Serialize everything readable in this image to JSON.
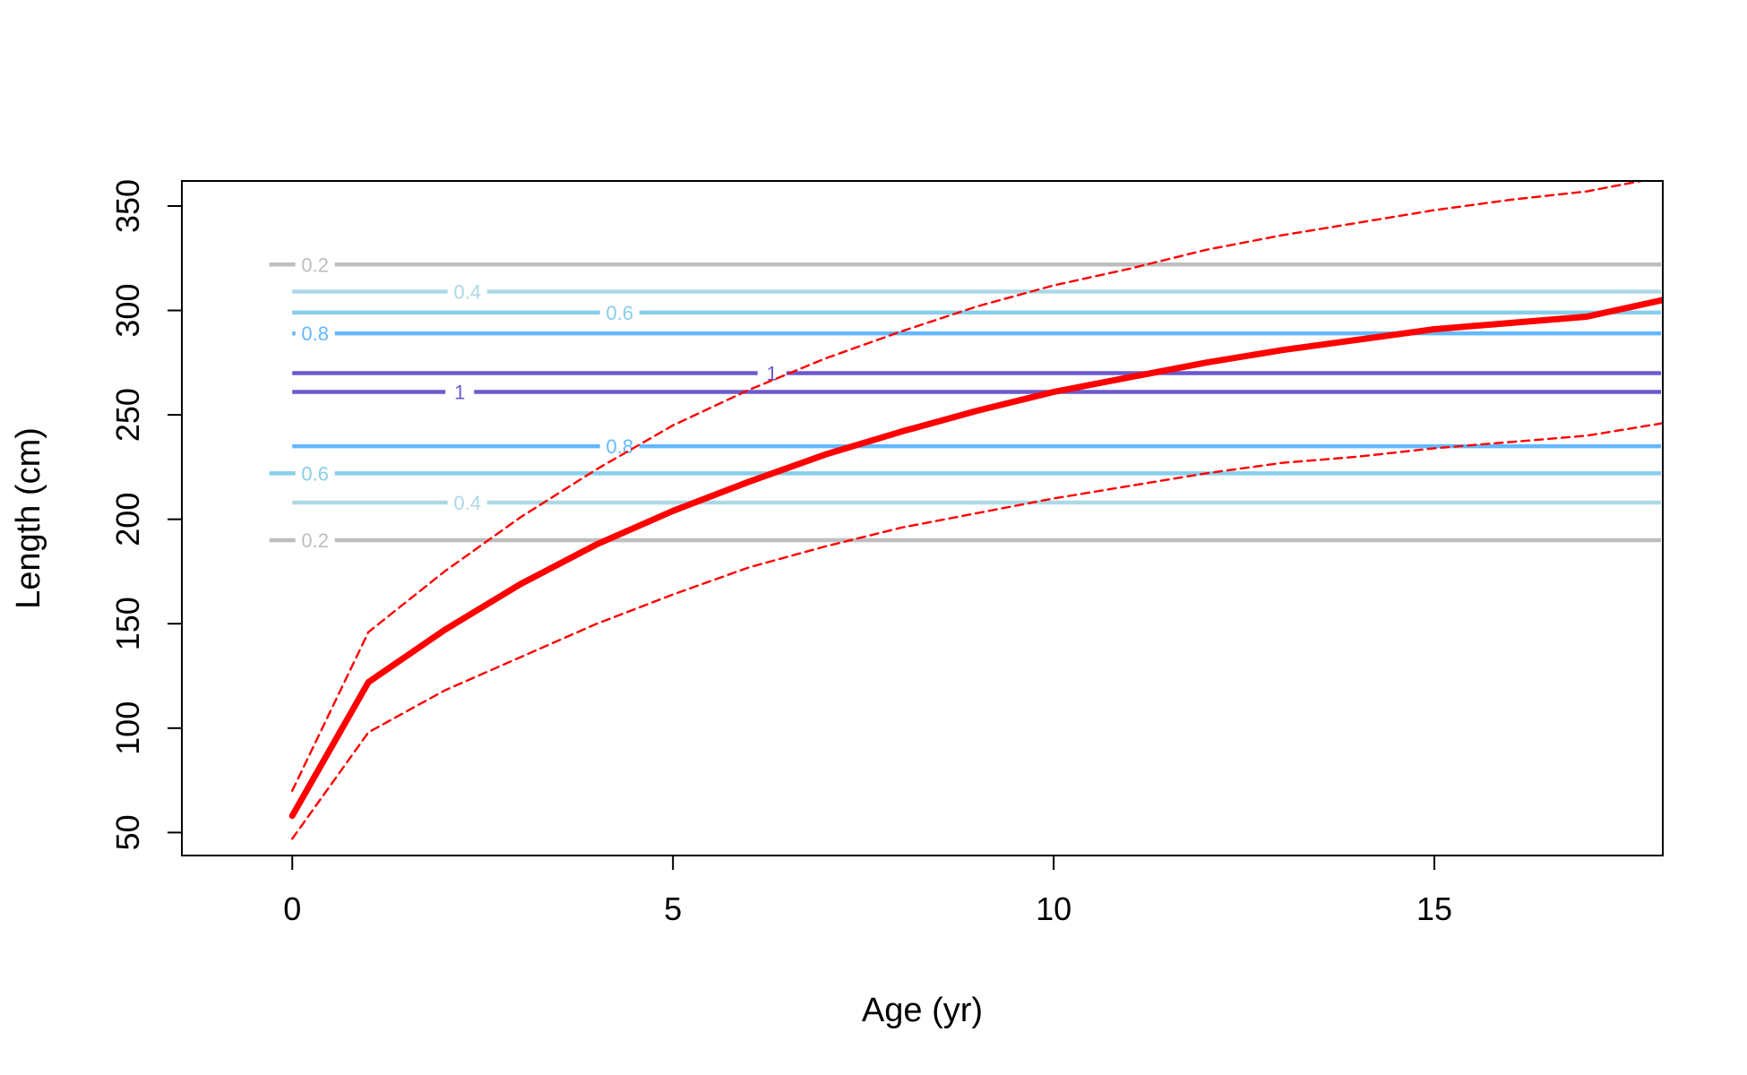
{
  "chart_data": {
    "type": "line",
    "title": "",
    "xlabel": "Age (yr)",
    "ylabel": "Length (cm)",
    "xlim": [
      -1.45,
      18.0
    ],
    "ylim": [
      39,
      362
    ],
    "x_ticks": [
      0,
      5,
      10,
      15
    ],
    "x_tick_labels": [
      "0",
      "5",
      "10",
      "15"
    ],
    "y_ticks": [
      50,
      100,
      150,
      200,
      250,
      300,
      350
    ],
    "y_tick_labels": [
      "50",
      "100",
      "150",
      "200",
      "250",
      "300",
      "350"
    ],
    "grid": false,
    "legend": "none",
    "series": [
      {
        "role": "mean",
        "color": "#ff0000",
        "style": "solid-thick",
        "x": [
          0,
          1,
          2,
          3,
          4,
          5,
          6,
          7,
          8,
          9,
          10,
          11,
          12,
          13,
          14,
          15,
          16,
          17,
          18
        ],
        "y": [
          58,
          122,
          147,
          169,
          188,
          204,
          218,
          231,
          242,
          252,
          261,
          268,
          275,
          281,
          286,
          291,
          294,
          297,
          305
        ]
      },
      {
        "role": "upper",
        "color": "#ff0000",
        "style": "dashed",
        "x": [
          0,
          1,
          2,
          3,
          4,
          5,
          6,
          7,
          8,
          9,
          10,
          11,
          12,
          13,
          14,
          15,
          16,
          17,
          18
        ],
        "y": [
          70,
          146,
          175,
          201,
          224,
          245,
          262,
          277,
          290,
          302,
          312,
          320,
          329,
          336,
          342,
          348,
          353,
          357,
          364
        ]
      },
      {
        "role": "lower",
        "color": "#ff0000",
        "style": "dashed",
        "x": [
          0,
          1,
          2,
          3,
          4,
          5,
          6,
          7,
          8,
          9,
          10,
          11,
          12,
          13,
          14,
          15,
          16,
          17,
          18
        ],
        "y": [
          47,
          98,
          118,
          134,
          150,
          164,
          177,
          187,
          196,
          203,
          210,
          216,
          222,
          227,
          230,
          234,
          237,
          240,
          246
        ]
      }
    ],
    "contour_lines": [
      {
        "y": 322,
        "label": "0.2",
        "color": "#bebebe",
        "x_start": -0.3,
        "x_end": 18,
        "label_x": 0.3
      },
      {
        "y": 309,
        "label": "0.4",
        "color": "#add8e6",
        "x_start": 0,
        "x_end": 18,
        "label_x": 2.3
      },
      {
        "y": 299,
        "label": "0.6",
        "color": "#87ceeb",
        "x_start": 0,
        "x_end": 18,
        "label_x": 4.3
      },
      {
        "y": 289,
        "label": "0.8",
        "color": "#63b8ff",
        "x_start": 0,
        "x_end": 18,
        "label_x": 0.3
      },
      {
        "y": 270,
        "label": "1",
        "color": "#6a5acd",
        "x_start": 0,
        "x_end": 18,
        "label_x": 6.3
      },
      {
        "y": 261,
        "label": "1",
        "color": "#6a5acd",
        "x_start": 0,
        "x_end": 18,
        "label_x": 2.2
      },
      {
        "y": 235,
        "label": "0.8",
        "color": "#63b8ff",
        "x_start": 0,
        "x_end": 18,
        "label_x": 4.3
      },
      {
        "y": 222,
        "label": "0.6",
        "color": "#87ceeb",
        "x_start": -0.3,
        "x_end": 18,
        "label_x": 0.3
      },
      {
        "y": 208,
        "label": "0.4",
        "color": "#add8e6",
        "x_start": 0,
        "x_end": 18,
        "label_x": 2.3
      },
      {
        "y": 190,
        "label": "0.2",
        "color": "#bebebe",
        "x_start": -0.3,
        "x_end": 18,
        "label_x": 0.3
      }
    ]
  }
}
